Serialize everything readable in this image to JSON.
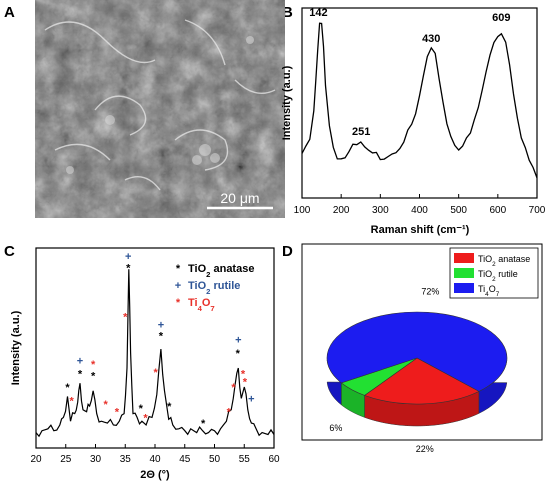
{
  "panels": {
    "a": "A",
    "b": "B",
    "c": "C",
    "d": "D"
  },
  "sem": {
    "scale_bar_label": "20 μm"
  },
  "chart_data": [
    {
      "type": "line",
      "panel": "B",
      "xlabel": "Raman shift (cm⁻¹)",
      "ylabel": "Intensity (a.u.)",
      "xlim": [
        100,
        700
      ],
      "xticks": [
        100,
        200,
        300,
        400,
        500,
        600,
        700
      ],
      "yticks_shown": false,
      "series": [
        {
          "x": [
            100,
            110,
            120,
            130,
            135,
            140,
            145,
            150,
            155,
            160,
            170,
            180,
            190,
            200,
            210,
            220,
            230,
            240,
            250,
            260,
            270,
            280,
            290,
            300,
            310,
            320,
            330,
            340,
            350,
            360,
            370,
            380,
            390,
            400,
            410,
            420,
            430,
            440,
            450,
            460,
            470,
            480,
            490,
            500,
            510,
            520,
            530,
            540,
            550,
            560,
            570,
            580,
            590,
            600,
            609,
            620,
            630,
            640,
            650,
            660,
            670,
            680,
            690,
            700
          ],
          "y": [
            0.22,
            0.24,
            0.3,
            0.45,
            0.62,
            0.8,
            0.95,
            0.96,
            0.85,
            0.62,
            0.38,
            0.26,
            0.21,
            0.19,
            0.2,
            0.22,
            0.25,
            0.26,
            0.27,
            0.25,
            0.22,
            0.21,
            0.21,
            0.2,
            0.21,
            0.22,
            0.23,
            0.25,
            0.27,
            0.3,
            0.33,
            0.37,
            0.44,
            0.54,
            0.66,
            0.76,
            0.8,
            0.77,
            0.66,
            0.52,
            0.4,
            0.32,
            0.28,
            0.26,
            0.27,
            0.29,
            0.33,
            0.4,
            0.48,
            0.58,
            0.68,
            0.78,
            0.86,
            0.9,
            0.92,
            0.86,
            0.74,
            0.58,
            0.44,
            0.33,
            0.25,
            0.18,
            0.12,
            0.08
          ]
        }
      ],
      "peak_labels": [
        {
          "x": 142,
          "y": 0.95,
          "text": "142"
        },
        {
          "x": 251,
          "y": 0.27,
          "text": "251"
        },
        {
          "x": 430,
          "y": 0.8,
          "text": "430"
        },
        {
          "x": 609,
          "y": 0.92,
          "text": "609"
        }
      ]
    },
    {
      "type": "line",
      "panel": "C",
      "xlabel": "2Θ (°)",
      "ylabel": "Intensity (a.u.)",
      "xlim": [
        20,
        60
      ],
      "xticks": [
        20,
        25,
        30,
        35,
        40,
        45,
        50,
        55,
        60
      ],
      "yticks_shown": false,
      "legend": [
        {
          "symbol": "*",
          "color": "#000000",
          "label": "TiO₂ anatase"
        },
        {
          "symbol": "+",
          "color": "#2e5597",
          "label": "TiO₂ rutile"
        },
        {
          "symbol": "*",
          "color": "#e8312a",
          "label": "Ti₄O₇"
        }
      ],
      "series": [
        {
          "x": [
            20,
            21,
            22,
            23,
            24,
            24.6,
            25.3,
            25.8,
            26.5,
            27.0,
            27.4,
            27.9,
            28.5,
            29.0,
            29.6,
            30.2,
            31,
            32,
            33,
            34,
            34.8,
            35.3,
            35.6,
            35.9,
            36.3,
            37,
            37.8,
            38.5,
            39.5,
            40.3,
            41.0,
            41.6,
            42.3,
            43,
            44,
            45,
            46,
            47,
            48,
            49,
            50,
            51,
            52,
            52.8,
            53.5,
            54.0,
            54.5,
            55.0,
            55.6,
            56.2,
            57,
            58,
            59,
            60
          ],
          "y": [
            0.06,
            0.07,
            0.08,
            0.07,
            0.1,
            0.14,
            0.25,
            0.12,
            0.16,
            0.22,
            0.32,
            0.18,
            0.17,
            0.2,
            0.28,
            0.16,
            0.12,
            0.11,
            0.1,
            0.12,
            0.16,
            0.4,
            0.92,
            0.48,
            0.16,
            0.14,
            0.12,
            0.1,
            0.14,
            0.26,
            0.5,
            0.28,
            0.13,
            0.1,
            0.08,
            0.07,
            0.08,
            0.06,
            0.07,
            0.06,
            0.07,
            0.08,
            0.12,
            0.18,
            0.32,
            0.4,
            0.24,
            0.3,
            0.18,
            0.11,
            0.08,
            0.06,
            0.05,
            0.05
          ]
        }
      ],
      "markers": [
        {
          "x": 25.3,
          "y": 0.3,
          "symbol": "*",
          "color": "#000000"
        },
        {
          "x": 26.0,
          "y": 0.23,
          "symbol": "*",
          "color": "#e8312a"
        },
        {
          "x": 27.4,
          "y": 0.44,
          "symbol": "+",
          "color": "#2e5597"
        },
        {
          "x": 27.4,
          "y": 0.37,
          "symbol": "*",
          "color": "#000000"
        },
        {
          "x": 29.6,
          "y": 0.36,
          "symbol": "*",
          "color": "#000000"
        },
        {
          "x": 29.6,
          "y": 0.42,
          "symbol": "*",
          "color": "#e8312a"
        },
        {
          "x": 31.7,
          "y": 0.21,
          "symbol": "*",
          "color": "#e8312a"
        },
        {
          "x": 33.6,
          "y": 0.17,
          "symbol": "*",
          "color": "#e8312a"
        },
        {
          "x": 35.5,
          "y": 0.99,
          "symbol": "+",
          "color": "#2e5597"
        },
        {
          "x": 35.5,
          "y": 0.93,
          "symbol": "*",
          "color": "#000000"
        },
        {
          "x": 35.0,
          "y": 0.67,
          "symbol": "*",
          "color": "#e8312a"
        },
        {
          "x": 37.6,
          "y": 0.19,
          "symbol": "*",
          "color": "#000000"
        },
        {
          "x": 38.4,
          "y": 0.14,
          "symbol": "*",
          "color": "#e8312a"
        },
        {
          "x": 41.0,
          "y": 0.63,
          "symbol": "+",
          "color": "#2e5597"
        },
        {
          "x": 41.0,
          "y": 0.57,
          "symbol": "*",
          "color": "#000000"
        },
        {
          "x": 40.1,
          "y": 0.38,
          "symbol": "*",
          "color": "#e8312a"
        },
        {
          "x": 42.4,
          "y": 0.2,
          "symbol": "*",
          "color": "#000000"
        },
        {
          "x": 48.1,
          "y": 0.11,
          "symbol": "*",
          "color": "#000000"
        },
        {
          "x": 52.4,
          "y": 0.17,
          "symbol": "*",
          "color": "#e8312a"
        },
        {
          "x": 53.2,
          "y": 0.3,
          "symbol": "*",
          "color": "#e8312a"
        },
        {
          "x": 54.0,
          "y": 0.55,
          "symbol": "+",
          "color": "#2e5597"
        },
        {
          "x": 53.9,
          "y": 0.48,
          "symbol": "*",
          "color": "#000000"
        },
        {
          "x": 54.8,
          "y": 0.37,
          "symbol": "*",
          "color": "#e8312a"
        },
        {
          "x": 55.1,
          "y": 0.33,
          "symbol": "*",
          "color": "#e8312a"
        },
        {
          "x": 56.2,
          "y": 0.24,
          "symbol": "+",
          "color": "#2e5597"
        }
      ]
    },
    {
      "type": "pie",
      "panel": "D",
      "style": "3d",
      "slices": [
        {
          "label": "TiO₂ anatase",
          "value": 22,
          "text": "22%",
          "color": "#ee1c1c"
        },
        {
          "label": "TiO₂ rutile",
          "value": 6,
          "text": "6%",
          "color": "#22e032"
        },
        {
          "label": "Ti₄O₇",
          "value": 72,
          "text": "72%",
          "color": "#1c1cf0"
        }
      ],
      "legend_placement": "top-right"
    }
  ]
}
